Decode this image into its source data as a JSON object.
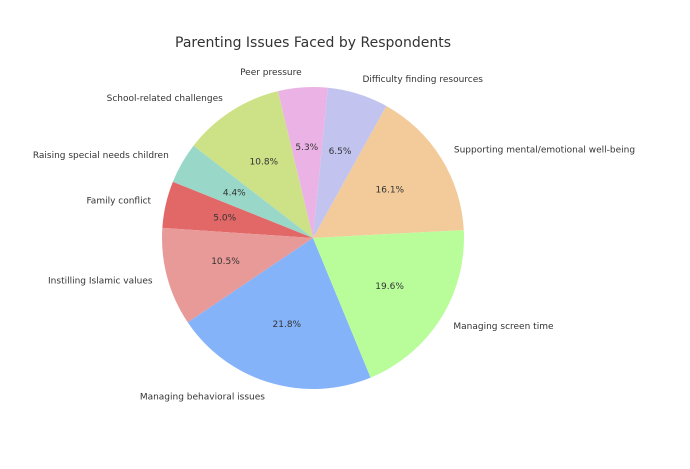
{
  "chart_data": {
    "type": "pie",
    "title": "Parenting Issues Faced by Respondents",
    "start_angle_deg": 3,
    "direction": "counterclockwise",
    "slices": [
      {
        "label": "Supporting mental/emotional well-being",
        "value": 16.1,
        "pct_label": "16.1%",
        "color": "#f3cb9a"
      },
      {
        "label": "Difficulty finding resources",
        "value": 6.5,
        "pct_label": "6.5%",
        "color": "#c2c3ef"
      },
      {
        "label": "Peer pressure",
        "value": 5.3,
        "pct_label": "5.3%",
        "color": "#ebb3e5"
      },
      {
        "label": "School-related challenges",
        "value": 10.8,
        "pct_label": "10.8%",
        "color": "#cde187"
      },
      {
        "label": "Raising special needs children",
        "value": 4.4,
        "pct_label": "4.4%",
        "color": "#99d8c9"
      },
      {
        "label": "Family conflict",
        "value": 5.0,
        "pct_label": "5.0%",
        "color": "#e26767"
      },
      {
        "label": "Instilling Islamic values",
        "value": 10.5,
        "pct_label": "10.5%",
        "color": "#e89a99"
      },
      {
        "label": "Managing behavioral issues",
        "value": 21.8,
        "pct_label": "21.8%",
        "color": "#84b3fa"
      },
      {
        "label": "Managing screen time",
        "value": 19.6,
        "pct_label": "19.6%",
        "color": "#b9fd9b"
      }
    ]
  }
}
